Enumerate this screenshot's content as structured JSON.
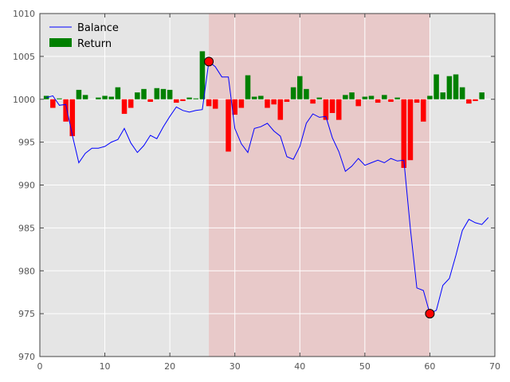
{
  "chart_data": {
    "type": "line",
    "title": "",
    "xlabel": "",
    "ylabel": "",
    "xlim": [
      0,
      70
    ],
    "ylim": [
      970,
      1010
    ],
    "xticks": [
      0,
      10,
      20,
      30,
      40,
      50,
      60,
      70
    ],
    "yticks": [
      970,
      975,
      980,
      985,
      990,
      995,
      1000,
      1005,
      1010
    ],
    "grid": true,
    "background": "#e5e5e5",
    "legend": {
      "position": "top-left",
      "entries": [
        "Balance",
        "Return"
      ]
    },
    "series": [
      {
        "name": "Balance",
        "type": "line",
        "color": "#0000ff",
        "x": [
          1,
          2,
          3,
          4,
          5,
          6,
          7,
          8,
          9,
          10,
          11,
          12,
          13,
          14,
          15,
          16,
          17,
          18,
          19,
          20,
          21,
          22,
          23,
          24,
          25,
          26,
          27,
          28,
          29,
          30,
          31,
          32,
          33,
          34,
          35,
          36,
          37,
          38,
          39,
          40,
          41,
          42,
          43,
          44,
          45,
          46,
          47,
          48,
          49,
          50,
          51,
          52,
          53,
          54,
          55,
          56,
          57,
          58,
          59,
          60,
          61,
          62,
          63,
          64,
          65,
          66,
          67,
          68,
          69
        ],
        "values": [
          1000.2,
          1000.4,
          999.3,
          999.4,
          995.8,
          992.6,
          993.7,
          994.3,
          994.3,
          994.5,
          995.0,
          995.3,
          996.6,
          994.9,
          993.8,
          994.6,
          995.8,
          995.4,
          996.8,
          998.0,
          999.1,
          998.7,
          998.5,
          998.7,
          998.8,
          1004.4,
          1003.8,
          1002.6,
          1002.6,
          996.6,
          994.8,
          993.8,
          996.6,
          996.8,
          997.2,
          996.3,
          995.7,
          993.3,
          993.0,
          994.5,
          997.2,
          998.3,
          997.9,
          998.0,
          995.5,
          993.9,
          991.6,
          992.2,
          993.1,
          992.3,
          992.6,
          992.9,
          992.6,
          993.1,
          992.8,
          992.9,
          984.9,
          978.0,
          977.7,
          975.0,
          975.4,
          978.3,
          979.1,
          981.8,
          984.7,
          986.0,
          985.6,
          985.4,
          986.2
        ]
      },
      {
        "name": "Return",
        "type": "bar",
        "color_positive": "#008000",
        "color_negative": "#ff0000",
        "x": [
          1,
          2,
          3,
          4,
          5,
          6,
          7,
          8,
          9,
          10,
          11,
          12,
          13,
          14,
          15,
          16,
          17,
          18,
          19,
          20,
          21,
          22,
          23,
          24,
          25,
          26,
          27,
          28,
          29,
          30,
          31,
          32,
          33,
          34,
          35,
          36,
          37,
          38,
          39,
          40,
          41,
          42,
          43,
          44,
          45,
          46,
          47,
          48,
          49,
          50,
          51,
          52,
          53,
          54,
          55,
          56,
          57,
          58,
          59,
          60,
          61,
          62,
          63,
          64,
          65,
          66,
          67,
          68,
          69
        ],
        "values": [
          0.4,
          -1.0,
          0.1,
          -2.6,
          -4.3,
          1.1,
          0.5,
          0.0,
          0.2,
          0.4,
          0.3,
          1.4,
          -1.7,
          -1.0,
          0.8,
          1.2,
          -0.3,
          1.3,
          1.2,
          1.1,
          -0.4,
          -0.2,
          0.2,
          0.1,
          5.6,
          -0.8,
          -1.1,
          0.0,
          -6.1,
          -1.8,
          -1.0,
          2.8,
          0.3,
          0.4,
          -1.0,
          -0.6,
          -2.4,
          -0.3,
          1.4,
          2.7,
          1.2,
          -0.5,
          0.2,
          -2.4,
          -1.6,
          -2.4,
          0.5,
          0.8,
          -0.8,
          0.3,
          0.4,
          -0.4,
          0.5,
          -0.3,
          0.2,
          -8.0,
          -7.1,
          -0.4,
          -2.6,
          0.4,
          2.9,
          0.8,
          2.7,
          2.9,
          1.4,
          -0.5,
          -0.2,
          0.8,
          0.0
        ]
      }
    ],
    "shaded_region": {
      "x_start": 26,
      "x_end": 60,
      "color": "#e8c9c9"
    },
    "markers": [
      {
        "x": 26,
        "y": 1004.4,
        "color": "#ff0000"
      },
      {
        "x": 60,
        "y": 975.0,
        "color": "#ff0000"
      }
    ]
  }
}
